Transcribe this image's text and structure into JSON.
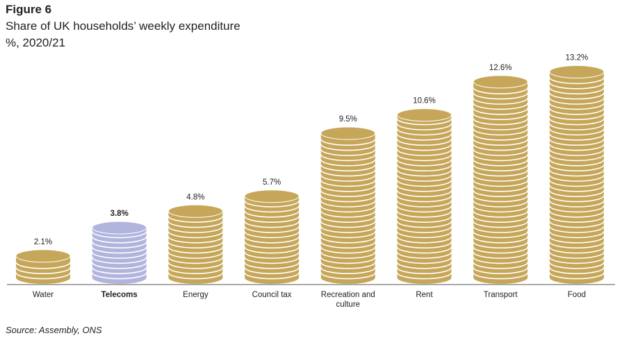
{
  "chart_data": {
    "type": "bar",
    "style": "coin stacks",
    "title": "Figure 6",
    "subtitle": "Share of UK households’ weekly expenditure",
    "unit_label": "%, 2020/21",
    "source": "Source: Assembly, ONS",
    "categories": [
      "Water",
      "Telecoms",
      "Energy",
      "Council tax",
      "Recreation and culture",
      "Rent",
      "Transport",
      "Food"
    ],
    "values": [
      2.1,
      3.8,
      4.8,
      5.7,
      9.5,
      10.6,
      12.6,
      13.2
    ],
    "data_labels": [
      "2.1%",
      "3.8%",
      "4.8%",
      "5.7%",
      "9.5%",
      "10.6%",
      "12.6%",
      "13.2%"
    ],
    "highlight": "Telecoms",
    "colors": {
      "default": "#c6a75a",
      "highlight": "#b1b4dd"
    },
    "ylim": [
      0,
      13.2
    ],
    "grid": false
  }
}
